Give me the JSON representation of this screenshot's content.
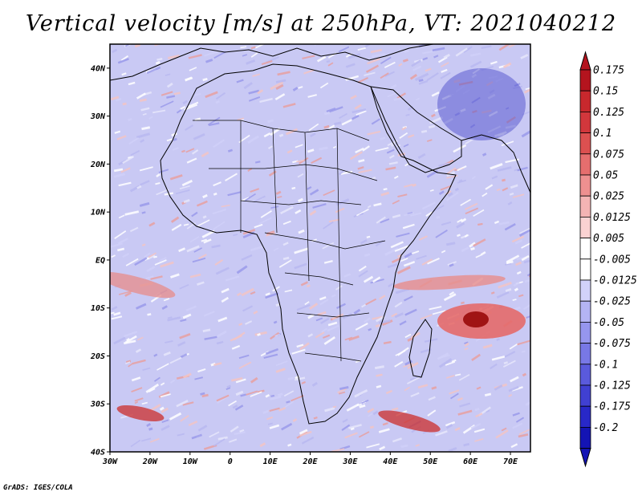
{
  "title": "Vertical velocity [m/s] at 250hPa, VT: 2021040212",
  "map": {
    "lon_range": [
      -30,
      75
    ],
    "lat_range": [
      -40,
      45
    ],
    "lon_ticks": [
      {
        "value": -30,
        "label": "30W"
      },
      {
        "value": -20,
        "label": "20W"
      },
      {
        "value": -10,
        "label": "10W"
      },
      {
        "value": 0,
        "label": "0"
      },
      {
        "value": 10,
        "label": "10E"
      },
      {
        "value": 20,
        "label": "20E"
      },
      {
        "value": 30,
        "label": "30E"
      },
      {
        "value": 40,
        "label": "40E"
      },
      {
        "value": 50,
        "label": "50E"
      },
      {
        "value": 60,
        "label": "60E"
      },
      {
        "value": 70,
        "label": "70E"
      }
    ],
    "lat_ticks": [
      {
        "value": 40,
        "label": "40N"
      },
      {
        "value": 30,
        "label": "30N"
      },
      {
        "value": 20,
        "label": "20N"
      },
      {
        "value": 10,
        "label": "10N"
      },
      {
        "value": 0,
        "label": "EQ"
      },
      {
        "value": -10,
        "label": "10S"
      },
      {
        "value": -20,
        "label": "20S"
      },
      {
        "value": -30,
        "label": "30S"
      },
      {
        "value": -40,
        "label": "40S"
      }
    ]
  },
  "colorbar": {
    "labels": [
      "0.175",
      "0.15",
      "0.125",
      "0.1",
      "0.075",
      "0.05",
      "0.025",
      "0.0125",
      "0.005",
      "-0.005",
      "-0.0125",
      "-0.025",
      "-0.05",
      "-0.075",
      "-0.1",
      "-0.125",
      "-0.175",
      "-0.2"
    ],
    "colors": [
      "#b4141e",
      "#c8282d",
      "#d2373c",
      "#dc5050",
      "#e66e6e",
      "#ee9090",
      "#f4b4b4",
      "#fad2d2",
      "#ffffff",
      "#ffffff",
      "#d2d2fa",
      "#b4b4f4",
      "#9696ee",
      "#7878e6",
      "#5a5adc",
      "#4040d2",
      "#2828c8",
      "#1414b4"
    ],
    "top_color": "#b4141e",
    "bottom_color": "#1414b4"
  },
  "footer": "GrADS: IGES/COLA"
}
